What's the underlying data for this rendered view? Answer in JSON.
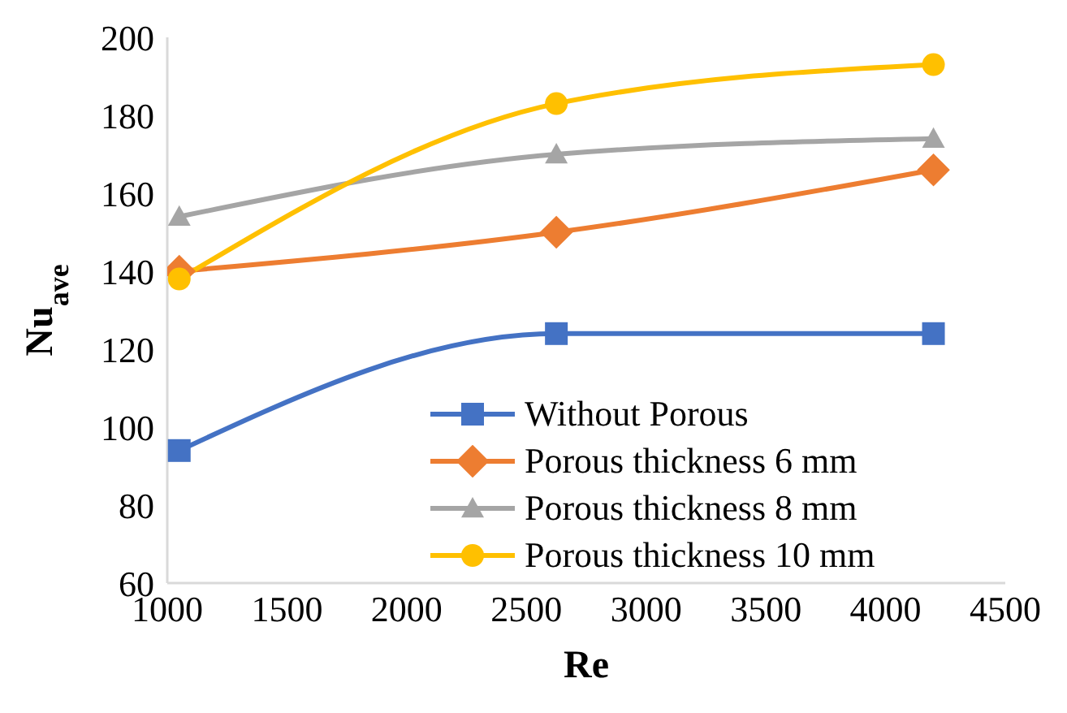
{
  "chart_data": {
    "type": "line",
    "xlabel": "Re",
    "ylabel": "Nu$_{ave}$",
    "x": [
      1050,
      2625,
      4200
    ],
    "xlim": [
      1000,
      4500
    ],
    "xticks": [
      1000,
      1500,
      2000,
      2500,
      3000,
      3500,
      4000,
      4500
    ],
    "ylim": [
      60,
      200
    ],
    "yticks": [
      60,
      80,
      100,
      120,
      140,
      160,
      180,
      200
    ],
    "grid": false,
    "legend": "bottom right",
    "line_style": "solid",
    "series": [
      {
        "name": "Without Porous",
        "color": "#4472c4",
        "marker": "square",
        "values": [
          94,
          124,
          124
        ]
      },
      {
        "name": "Porous thickness 6 mm",
        "color": "#ed7d31",
        "marker": "diamond",
        "values": [
          140,
          150,
          166
        ]
      },
      {
        "name": "Porous thickness 8 mm",
        "color": "#a5a5a5",
        "marker": "triangle",
        "values": [
          154,
          170,
          174
        ]
      },
      {
        "name": "Porous thickness 10 mm",
        "color": "#ffc000",
        "marker": "circle",
        "values": [
          138,
          183,
          193
        ]
      }
    ]
  }
}
